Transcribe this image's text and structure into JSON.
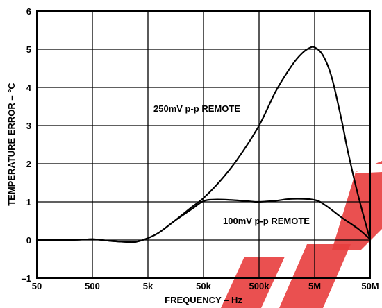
{
  "chart_data": {
    "type": "line",
    "title": "",
    "xlabel": "FREQUENCY – Hz",
    "ylabel": "TEMPERATURE ERROR – °C",
    "x_scale": "log",
    "xlim": [
      50,
      50000000
    ],
    "ylim": [
      -1,
      6
    ],
    "x_ticks": [
      50,
      500,
      5000,
      50000,
      500000,
      5000000,
      50000000
    ],
    "x_tick_labels": [
      "50",
      "500",
      "5k",
      "50k",
      "500k",
      "5M",
      "50M"
    ],
    "y_ticks": [
      -1,
      0,
      1,
      2,
      3,
      4,
      5,
      6
    ],
    "y_tick_labels": [
      "–1",
      "0",
      "1",
      "2",
      "3",
      "4",
      "5",
      "6"
    ],
    "grid": true,
    "legend": "none",
    "series": [
      {
        "name": "250mV p-p REMOTE",
        "color": "#000000",
        "x": [
          50,
          200,
          500,
          1000,
          2000,
          3000,
          5000,
          8000,
          15000,
          30000,
          50000,
          100000,
          200000,
          500000,
          1000000,
          2000000,
          3000000,
          4000000,
          5000000,
          7000000,
          10000000,
          15000000,
          20000000,
          30000000,
          50000000
        ],
        "y": [
          0.0,
          0.0,
          0.02,
          -0.02,
          -0.05,
          -0.05,
          0.05,
          0.2,
          0.5,
          0.85,
          1.1,
          1.55,
          2.1,
          3.0,
          3.9,
          4.6,
          4.9,
          5.03,
          5.05,
          4.85,
          4.3,
          3.2,
          2.3,
          1.2,
          0.0
        ]
      },
      {
        "name": "100mV p-p REMOTE",
        "color": "#000000",
        "x": [
          50,
          200,
          500,
          1000,
          2000,
          3000,
          5000,
          8000,
          15000,
          30000,
          50000,
          80000,
          150000,
          300000,
          500000,
          1000000,
          2000000,
          5000000,
          8000000,
          15000000,
          30000000,
          50000000
        ],
        "y": [
          0.0,
          0.0,
          0.02,
          -0.02,
          -0.05,
          -0.05,
          0.05,
          0.2,
          0.5,
          0.8,
          1.02,
          1.06,
          1.05,
          1.02,
          1.0,
          1.03,
          1.08,
          1.05,
          0.9,
          0.6,
          0.3,
          0.02
        ]
      }
    ],
    "annotations": [
      {
        "text": "250mV p-p REMOTE",
        "series": 0
      },
      {
        "text": "100mV p-p REMOTE",
        "series": 1
      }
    ]
  },
  "watermark": {
    "color": "#e83d3d"
  }
}
